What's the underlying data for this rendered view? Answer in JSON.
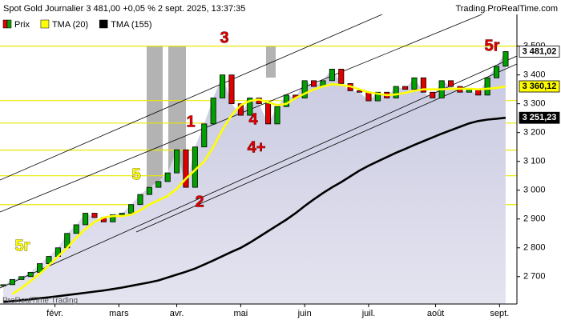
{
  "chart_data": {
    "type": "candlestick",
    "title": "Spot  Gold Journalier 3 481,00 +0,05 % 2 sept. 2025, 13:37:35",
    "source": "Trading.ProRealTime.com",
    "watermark": "ProRealTime Trading",
    "x": [
      0,
      3,
      6,
      9,
      12,
      15,
      18,
      21,
      24,
      27,
      30,
      33,
      36,
      39,
      42,
      45,
      48,
      51,
      54,
      57,
      60,
      63,
      66,
      69,
      72,
      75,
      78,
      81,
      84,
      87,
      90,
      93,
      96,
      99,
      102,
      105,
      108,
      111,
      114,
      117,
      120,
      123,
      126,
      129,
      132,
      135,
      138,
      141,
      144,
      147,
      150,
      153,
      156,
      159,
      162,
      165
    ],
    "xlim": [
      -1.05,
      168.7
    ],
    "xticks": [
      {
        "value": 17,
        "label": "févr."
      },
      {
        "value": 38,
        "label": "mars"
      },
      {
        "value": 57,
        "label": "avr."
      },
      {
        "value": 78,
        "label": "mai"
      },
      {
        "value": 99,
        "label": "juin"
      },
      {
        "value": 120,
        "label": "juil."
      },
      {
        "value": 142,
        "label": "août"
      },
      {
        "value": 163,
        "label": "sept."
      }
    ],
    "ylim": [
      2605,
      3610
    ],
    "yticks": [
      {
        "value": 2700,
        "label": "2 700"
      },
      {
        "value": 2800,
        "label": "2 800"
      },
      {
        "value": 2900,
        "label": "2 900"
      },
      {
        "value": 3000,
        "label": "3 000"
      },
      {
        "value": 3100,
        "label": "3 100"
      },
      {
        "value": 3200,
        "label": "3 200"
      },
      {
        "value": 3300,
        "label": "3 300"
      },
      {
        "value": 3400,
        "label": "3 400"
      },
      {
        "value": 3500,
        "label": "3 500"
      }
    ],
    "series": [
      {
        "name": "Prix",
        "kind": "candle",
        "up_color": "#00a000",
        "down_color": "#e00000",
        "color": "#ffffff",
        "label_text_color": "#000000",
        "last_label": "3 481,02",
        "values": [
          2672,
          2690,
          2700,
          2715,
          2745,
          2770,
          2800,
          2850,
          2880,
          2920,
          2905,
          2890,
          2915,
          2920,
          2950,
          2985,
          3010,
          3030,
          3060,
          3140,
          3010,
          3150,
          3230,
          3320,
          3400,
          3300,
          3260,
          3320,
          3300,
          3230,
          3290,
          3330,
          3320,
          3380,
          3360,
          3380,
          3420,
          3370,
          3345,
          3340,
          3310,
          3340,
          3320,
          3360,
          3350,
          3390,
          3340,
          3320,
          3380,
          3360,
          3340,
          3350,
          3330,
          3390,
          3430,
          3481.02
        ]
      },
      {
        "name": "TMA (20)",
        "kind": "line",
        "color": "#ffff00",
        "label_text_color": "#000000",
        "last_label": "3 360,12",
        "values": [
          null,
          2640,
          2660,
          2685,
          2710,
          2740,
          2770,
          2800,
          2835,
          2865,
          2890,
          2905,
          2910,
          2910,
          2915,
          2930,
          2950,
          2965,
          2980,
          3005,
          3040,
          3070,
          3100,
          3150,
          3210,
          3260,
          3295,
          3310,
          3315,
          3305,
          3295,
          3300,
          3320,
          3335,
          3350,
          3360,
          3368,
          3365,
          3360,
          3350,
          3340,
          3335,
          3330,
          3332,
          3338,
          3345,
          3350,
          3350,
          3350,
          3352,
          3352,
          3352,
          3350,
          3352,
          3355,
          3360.12
        ]
      },
      {
        "name": "TMA (155)",
        "kind": "line",
        "color": "#000000",
        "label_text_color": "#ffffff",
        "last_label": "3 251,23",
        "values": [
          2612,
          2615,
          2618,
          2621,
          2625,
          2628,
          2632,
          2636,
          2640,
          2644,
          2648,
          2652,
          2657,
          2662,
          2668,
          2674,
          2680,
          2687,
          2697,
          2707,
          2717,
          2728,
          2742,
          2756,
          2771,
          2786,
          2800,
          2818,
          2838,
          2858,
          2878,
          2898,
          2920,
          2945,
          2968,
          2990,
          3010,
          3028,
          3048,
          3068,
          3085,
          3100,
          3115,
          3130,
          3143,
          3157,
          3170,
          3183,
          3196,
          3208,
          3220,
          3232,
          3240,
          3245,
          3248,
          3251.23
        ]
      }
    ],
    "hlines": {
      "color": "#e8e800",
      "values": [
        3500,
        3311,
        3233,
        3139,
        3050,
        2950
      ]
    },
    "annotations": [
      {
        "text": "5r",
        "color": "#ffff00"
      },
      {
        "text": "5",
        "color": "#ffff00"
      },
      {
        "text": "1",
        "color": "#e00000"
      },
      {
        "text": "2",
        "color": "#e00000"
      },
      {
        "text": "3",
        "color": "#e00000"
      },
      {
        "text": "4",
        "color": "#e00000"
      },
      {
        "text": "4+",
        "color": "#e00000"
      },
      {
        "text": "5r",
        "color": "#e00000"
      }
    ]
  }
}
